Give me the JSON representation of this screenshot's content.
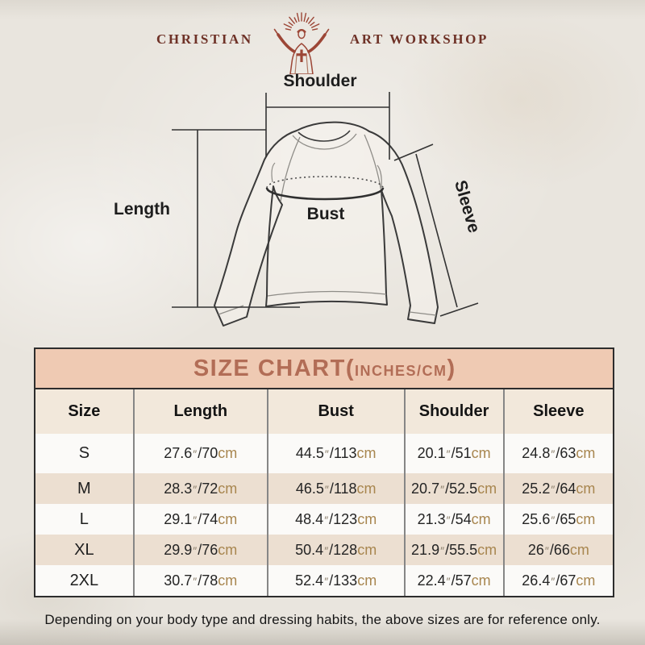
{
  "brand": {
    "name_left": "CHRISTIAN",
    "name_right": "ART WORKSHOP"
  },
  "diagram": {
    "labels": {
      "shoulder": "Shoulder",
      "length": "Length",
      "bust": "Bust",
      "sleeve": "Sleeve"
    }
  },
  "size_chart": {
    "title": {
      "main": "SIZE CHART(",
      "unit": "INCHES/CM",
      "close": ")"
    },
    "columns": [
      "Size",
      "Length",
      "Bust",
      "Shoulder",
      "Sleeve"
    ],
    "unit_inch_mark": "″",
    "unit_cm": "cm",
    "rows": [
      {
        "size": "S",
        "length": {
          "in": "27.6",
          "cm": "70"
        },
        "bust": {
          "in": "44.5",
          "cm": "113"
        },
        "shoulder": {
          "in": "20.1",
          "cm": "51"
        },
        "sleeve": {
          "in": "24.8",
          "cm": "63"
        }
      },
      {
        "size": "M",
        "length": {
          "in": "28.3",
          "cm": "72"
        },
        "bust": {
          "in": "46.5",
          "cm": "118"
        },
        "shoulder": {
          "in": "20.7",
          "cm": "52.5"
        },
        "sleeve": {
          "in": "25.2",
          "cm": "64"
        }
      },
      {
        "size": "L",
        "length": {
          "in": "29.1",
          "cm": "74"
        },
        "bust": {
          "in": "48.4",
          "cm": "123"
        },
        "shoulder": {
          "in": "21.3",
          "cm": "54"
        },
        "sleeve": {
          "in": "25.6",
          "cm": "65"
        }
      },
      {
        "size": "XL",
        "length": {
          "in": "29.9",
          "cm": "76"
        },
        "bust": {
          "in": "50.4",
          "cm": "128"
        },
        "shoulder": {
          "in": "21.9",
          "cm": "55.5"
        },
        "sleeve": {
          "in": "26",
          "cm": "66"
        }
      },
      {
        "size": "2XL",
        "length": {
          "in": "30.7",
          "cm": "78"
        },
        "bust": {
          "in": "52.4",
          "cm": "133"
        },
        "shoulder": {
          "in": "22.4",
          "cm": "57"
        },
        "sleeve": {
          "in": "26.4",
          "cm": "67"
        }
      }
    ]
  },
  "chart_data": {
    "type": "table",
    "title": "SIZE CHART(INCHES/CM)",
    "columns": [
      "Size",
      "Length",
      "Bust",
      "Shoulder",
      "Sleeve"
    ],
    "rows": [
      [
        "S",
        "27.6\"/70cm",
        "44.5\"/113cm",
        "20.1\"/51cm",
        "24.8\"/63cm"
      ],
      [
        "M",
        "28.3\"/72cm",
        "46.5\"/118cm",
        "20.7\"/52.5cm",
        "25.2\"/64cm"
      ],
      [
        "L",
        "29.1\"/74cm",
        "48.4\"/123cm",
        "21.3\"/54cm",
        "25.6\"/65cm"
      ],
      [
        "XL",
        "29.9\"/76cm",
        "50.4\"/128cm",
        "21.9\"/55.5cm",
        "26\"/66cm"
      ],
      [
        "2XL",
        "30.7\"/78cm",
        "52.4\"/133cm",
        "22.4\"/57cm",
        "26.4\"/67cm"
      ]
    ]
  },
  "footer": {
    "note": "Depending on your body type and dressing habits, the above sizes are for reference only."
  },
  "colors": {
    "page-bg": "#e9e5de",
    "brand-red": "#6e3126",
    "logo-figure-red": "#9c4636",
    "title-band-bg": "#efcab3",
    "title-text": "#b26d56",
    "header-row-bg": "#f2e8db",
    "row-white": "#fbfaf8",
    "row-beige": "#ecdfd1",
    "table-border": "#2d2d2d",
    "column-divider": "#868686",
    "text-dark": "#1d1d1d",
    "cm-unit-tan": "#a8864f",
    "inch-mark-gray": "#8a7e6b",
    "sketch-line": "#3a3a3a",
    "sketch-seam": "#8f8d88"
  }
}
